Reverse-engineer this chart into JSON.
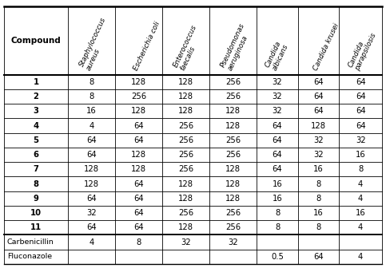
{
  "col_headers": [
    "Compound",
    "Staphylococcus\naureus",
    "Escherichia coli",
    "Enterococcus\nfaecalis",
    "Pseudomonas\naeruginosa",
    "Candida\nalbicans",
    "Candida krusei",
    "Candida\nparapsilosis"
  ],
  "rows": [
    [
      "1",
      "8",
      "128",
      "128",
      "256",
      "32",
      "64",
      "64"
    ],
    [
      "2",
      "8",
      "256",
      "128",
      "256",
      "32",
      "64",
      "64"
    ],
    [
      "3",
      "16",
      "128",
      "128",
      "128",
      "32",
      "64",
      "64"
    ],
    [
      "4",
      "4",
      "64",
      "256",
      "128",
      "64",
      "128",
      "64"
    ],
    [
      "5",
      "64",
      "64",
      "256",
      "256",
      "64",
      "32",
      "32"
    ],
    [
      "6",
      "64",
      "128",
      "256",
      "256",
      "64",
      "32",
      "16"
    ],
    [
      "7",
      "128",
      "128",
      "256",
      "128",
      "64",
      "16",
      "8"
    ],
    [
      "8",
      "128",
      "64",
      "128",
      "128",
      "16",
      "8",
      "4"
    ],
    [
      "9",
      "64",
      "64",
      "128",
      "128",
      "16",
      "8",
      "4"
    ],
    [
      "10",
      "32",
      "64",
      "256",
      "256",
      "8",
      "16",
      "16"
    ],
    [
      "11",
      "64",
      "64",
      "128",
      "256",
      "8",
      "8",
      "4"
    ],
    [
      "Carbenicillin",
      "4",
      "8",
      "32",
      "32",
      "",
      "",
      ""
    ],
    [
      "Fluconazole",
      "",
      "",
      "",
      "",
      "0.5",
      "64",
      "4"
    ]
  ],
  "bold_compound_rows": [
    0,
    1,
    2,
    3,
    4,
    5,
    6,
    7,
    8,
    9,
    10
  ],
  "background_color": "#ffffff",
  "line_color": "#000000",
  "text_color": "#000000",
  "col_widths_rel": [
    1.35,
    1.0,
    1.0,
    1.0,
    1.0,
    0.87,
    0.87,
    0.91
  ]
}
